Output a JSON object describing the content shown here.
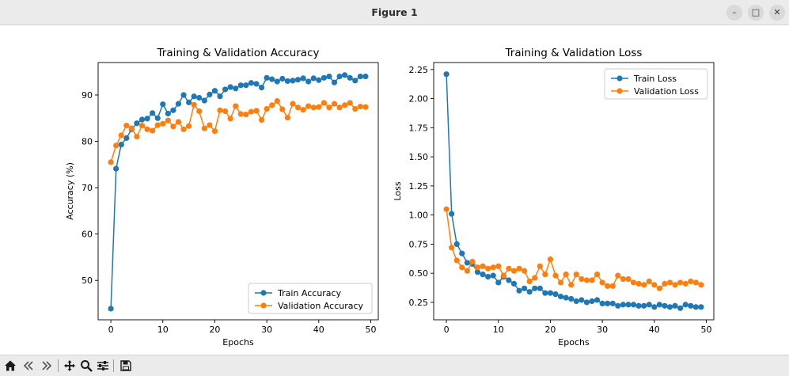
{
  "window": {
    "title": "Figure 1",
    "minimize_glyph": "–",
    "maximize_glyph": "□",
    "close_glyph": "✕"
  },
  "toolbar": {
    "tools": [
      "home-icon",
      "back-icon",
      "forward-icon",
      "pan-icon",
      "zoom-icon",
      "configure-subplots-icon",
      "save-icon"
    ]
  },
  "colors": {
    "train": "#1f77b4",
    "validation": "#ff7f0e"
  },
  "chart_data": [
    {
      "type": "line",
      "title": "Training & Validation Accuracy",
      "xlabel": "Epochs",
      "ylabel": "Accuracy (%)",
      "xlim": [
        -2.45,
        51.45
      ],
      "ylim": [
        41.5,
        97.0
      ],
      "xticks": [
        0,
        10,
        20,
        30,
        40,
        50
      ],
      "yticks": [
        50,
        60,
        70,
        80,
        90
      ],
      "legend_position": "lower right",
      "x": [
        0,
        1,
        2,
        3,
        4,
        5,
        6,
        7,
        8,
        9,
        10,
        11,
        12,
        13,
        14,
        15,
        16,
        17,
        18,
        19,
        20,
        21,
        22,
        23,
        24,
        25,
        26,
        27,
        28,
        29,
        30,
        31,
        32,
        33,
        34,
        35,
        36,
        37,
        38,
        39,
        40,
        41,
        42,
        43,
        44,
        45,
        46,
        47,
        48,
        49
      ],
      "series": [
        {
          "name": "Train Accuracy",
          "color": "#1f77b4",
          "values": [
            43.9,
            74.1,
            79.3,
            80.7,
            82.6,
            83.9,
            84.7,
            84.9,
            86.1,
            85.0,
            88.0,
            86.0,
            86.7,
            88.1,
            90.0,
            88.4,
            89.7,
            89.4,
            88.8,
            90.1,
            90.9,
            89.7,
            91.2,
            91.7,
            91.4,
            92.1,
            92.1,
            92.6,
            92.4,
            91.6,
            93.7,
            93.4,
            92.9,
            93.5,
            93.0,
            93.1,
            93.3,
            93.6,
            92.9,
            93.6,
            93.2,
            93.7,
            94.0,
            92.7,
            94.0,
            94.3,
            93.7,
            93.1,
            94.0,
            94.0
          ]
        },
        {
          "name": "Validation Accuracy",
          "color": "#ff7f0e",
          "values": [
            75.5,
            79.1,
            81.3,
            83.4,
            82.8,
            81.0,
            83.4,
            82.6,
            82.3,
            83.5,
            83.8,
            84.5,
            83.2,
            84.2,
            82.6,
            83.3,
            87.9,
            86.5,
            82.8,
            83.5,
            82.2,
            86.7,
            86.5,
            84.9,
            87.6,
            85.9,
            85.8,
            86.4,
            86.6,
            84.6,
            87.0,
            87.8,
            88.7,
            86.9,
            85.1,
            88.1,
            87.3,
            86.8,
            87.6,
            87.3,
            87.4,
            88.3,
            87.3,
            88.1,
            87.3,
            87.8,
            88.3,
            87.0,
            87.5,
            87.4
          ]
        }
      ]
    },
    {
      "type": "line",
      "title": "Training & Validation Loss",
      "xlabel": "Epochs",
      "ylabel": "Loss",
      "xlim": [
        -2.45,
        51.45
      ],
      "ylim": [
        0.1,
        2.31
      ],
      "xticks": [
        0,
        10,
        20,
        30,
        40,
        50
      ],
      "yticks": [
        0.25,
        0.5,
        0.75,
        1.0,
        1.25,
        1.5,
        1.75,
        2.0,
        2.25
      ],
      "legend_position": "upper right",
      "x": [
        0,
        1,
        2,
        3,
        4,
        5,
        6,
        7,
        8,
        9,
        10,
        11,
        12,
        13,
        14,
        15,
        16,
        17,
        18,
        19,
        20,
        21,
        22,
        23,
        24,
        25,
        26,
        27,
        28,
        29,
        30,
        31,
        32,
        33,
        34,
        35,
        36,
        37,
        38,
        39,
        40,
        41,
        42,
        43,
        44,
        45,
        46,
        47,
        48,
        49
      ],
      "series": [
        {
          "name": "Train Loss",
          "color": "#1f77b4",
          "values": [
            2.21,
            1.01,
            0.75,
            0.67,
            0.59,
            0.58,
            0.51,
            0.49,
            0.47,
            0.48,
            0.42,
            0.47,
            0.44,
            0.41,
            0.35,
            0.37,
            0.34,
            0.37,
            0.37,
            0.33,
            0.33,
            0.32,
            0.3,
            0.29,
            0.28,
            0.26,
            0.27,
            0.25,
            0.26,
            0.27,
            0.24,
            0.24,
            0.24,
            0.22,
            0.23,
            0.23,
            0.23,
            0.22,
            0.22,
            0.23,
            0.21,
            0.23,
            0.22,
            0.21,
            0.22,
            0.2,
            0.23,
            0.22,
            0.21,
            0.21
          ]
        },
        {
          "name": "Validation Loss",
          "color": "#ff7f0e",
          "values": [
            1.05,
            0.72,
            0.61,
            0.55,
            0.52,
            0.6,
            0.55,
            0.56,
            0.54,
            0.55,
            0.56,
            0.48,
            0.54,
            0.52,
            0.54,
            0.52,
            0.43,
            0.46,
            0.56,
            0.49,
            0.62,
            0.48,
            0.42,
            0.49,
            0.4,
            0.49,
            0.45,
            0.44,
            0.44,
            0.49,
            0.42,
            0.39,
            0.39,
            0.48,
            0.45,
            0.45,
            0.42,
            0.41,
            0.4,
            0.43,
            0.4,
            0.37,
            0.41,
            0.42,
            0.4,
            0.42,
            0.41,
            0.43,
            0.42,
            0.4
          ]
        }
      ]
    }
  ]
}
